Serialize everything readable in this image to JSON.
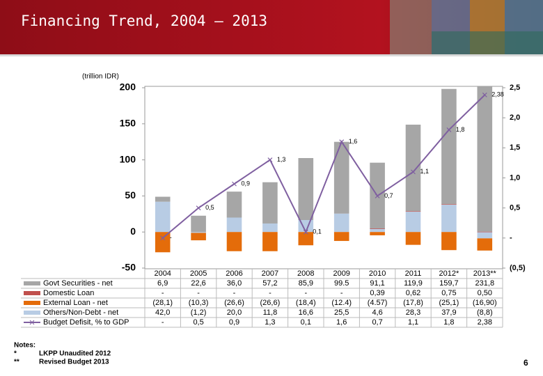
{
  "chart_data": {
    "type": "stacked-bar-line",
    "title": "Financing Trend, 2004 – 2013",
    "y_label": "(trillion IDR)",
    "categories": [
      "2004",
      "2005",
      "2006",
      "2007",
      "2008",
      "2009",
      "2010",
      "2011",
      "2012*",
      "2013**"
    ],
    "series": [
      {
        "name": "Govt Securities - net",
        "color": "#a6a6a6",
        "kind": "bar",
        "values": [
          6.9,
          22.6,
          36.0,
          57.2,
          85.9,
          99.5,
          91.1,
          119.9,
          159.7,
          231.8
        ],
        "value_labels": [
          "6,9",
          "22,6",
          "36,0",
          "57,2",
          "85,9",
          "99.5",
          "91,1",
          "119,9",
          "159,7",
          "231,8"
        ]
      },
      {
        "name": "Domestic Loan",
        "color": "#c0504d",
        "kind": "bar",
        "values": [
          null,
          null,
          null,
          null,
          null,
          null,
          0.39,
          0.62,
          0.75,
          0.5
        ],
        "value_labels": [
          "-",
          "-",
          "-",
          "-",
          "-",
          "-",
          "0,39",
          "0,62",
          "0,75",
          "0,50"
        ]
      },
      {
        "name": "External Loan - net",
        "color": "#e46c0a",
        "kind": "bar",
        "values": [
          -28.1,
          -10.3,
          -26.6,
          -26.6,
          -18.4,
          -12.4,
          -4.57,
          -17.8,
          -25.1,
          -16.9
        ],
        "value_labels": [
          "(28,1)",
          "(10,3)",
          "(26,6)",
          "(26,6)",
          "(18,4)",
          "(12.4)",
          "(4.57)",
          "(17,8)",
          "(25,1)",
          "(16,90)"
        ]
      },
      {
        "name": "Others/Non-Debt - net",
        "color": "#b8cce4",
        "kind": "bar",
        "values": [
          42.0,
          -1.2,
          20.0,
          11.8,
          16.6,
          25.5,
          4.6,
          28.3,
          37.9,
          -8.8
        ],
        "value_labels": [
          "42,0",
          "(1,2)",
          "20,0",
          "11,8",
          "16,6",
          "25,5",
          "4,6",
          "28,3",
          "37,9",
          "(8,8)"
        ]
      },
      {
        "name": "Budget Defisit, % to GDP",
        "color": "#7f5fa0",
        "kind": "line",
        "axis": "y2",
        "values": [
          0,
          0.5,
          0.9,
          1.3,
          0.1,
          1.6,
          0.7,
          1.1,
          1.8,
          2.38
        ],
        "value_labels": [
          "-",
          "0,5",
          "0,9",
          "1,3",
          "0,1",
          "1,6",
          "0,7",
          "1,1",
          "1,8",
          "2,38"
        ]
      }
    ],
    "ylim": [
      -50,
      200
    ],
    "yticks": [
      -50,
      0,
      50,
      100,
      150,
      200
    ],
    "y2lim": [
      -0.5,
      2.5
    ],
    "y2ticks": [
      {
        "value": -0.5,
        "label": "(0,5)"
      },
      {
        "value": 0,
        "label": "-"
      },
      {
        "value": 0.5,
        "label": "0,5"
      },
      {
        "value": 1,
        "label": "1,0"
      },
      {
        "value": 1.5,
        "label": "1,5"
      },
      {
        "value": 2,
        "label": "2,0"
      },
      {
        "value": 2.5,
        "label": "2,5"
      }
    ],
    "grid": false
  },
  "notes": {
    "heading": "Notes:",
    "items": [
      {
        "mark": "*",
        "text": "LKPP Unaudited 2012"
      },
      {
        "mark": "**",
        "text": "Revised Budget 2013"
      }
    ]
  },
  "page_number": "6"
}
